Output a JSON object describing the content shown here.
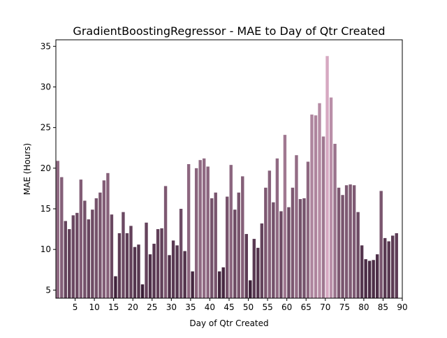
{
  "chart_data": {
    "type": "bar",
    "title": "GradientBoostingRegressor - MAE to Day of Qtr Created",
    "xlabel": "Day of Qtr Created",
    "ylabel": "MAE (Hours)",
    "x_ticks": [
      5,
      10,
      15,
      20,
      25,
      30,
      35,
      40,
      45,
      50,
      55,
      60,
      65,
      70,
      75,
      80,
      85,
      90
    ],
    "y_ticks": [
      5,
      10,
      15,
      20,
      25,
      30,
      35
    ],
    "xlim": [
      0,
      90
    ],
    "ylim": [
      4,
      35.8
    ],
    "grid": false,
    "color_scale": {
      "low": "#3b1e37",
      "high": "#d6a8c1"
    },
    "x": [
      1,
      2,
      3,
      4,
      5,
      6,
      7,
      8,
      9,
      10,
      11,
      12,
      13,
      14,
      15,
      16,
      17,
      18,
      19,
      20,
      21,
      22,
      23,
      24,
      25,
      26,
      27,
      28,
      29,
      30,
      31,
      32,
      33,
      34,
      35,
      36,
      37,
      38,
      39,
      40,
      41,
      42,
      43,
      44,
      45,
      46,
      47,
      48,
      49,
      50,
      51,
      52,
      53,
      54,
      55,
      56,
      57,
      58,
      59,
      60,
      61,
      62,
      63,
      64,
      65,
      66,
      67,
      68,
      69,
      70,
      71,
      72,
      73,
      74,
      75,
      76,
      77,
      78,
      79,
      80,
      81,
      82,
      83,
      84,
      85,
      86,
      87,
      88,
      89
    ],
    "values": [
      20.9,
      18.9,
      13.5,
      12.5,
      14.2,
      14.5,
      18.6,
      16.0,
      13.7,
      14.9,
      16.3,
      17.0,
      18.5,
      19.4,
      14.3,
      6.7,
      12.0,
      14.6,
      12.0,
      12.9,
      10.3,
      10.6,
      5.7,
      13.3,
      9.4,
      10.7,
      12.5,
      12.6,
      17.8,
      9.3,
      11.1,
      10.5,
      15.0,
      9.8,
      20.5,
      7.3,
      20.0,
      21.0,
      21.2,
      20.2,
      16.3,
      17.0,
      7.3,
      7.8,
      16.5,
      20.4,
      14.9,
      17.0,
      19.0,
      11.9,
      6.2,
      11.3,
      10.2,
      13.2,
      17.6,
      19.7,
      15.8,
      21.2,
      14.7,
      24.1,
      15.2,
      17.6,
      21.6,
      16.2,
      16.3,
      20.8,
      26.6,
      26.5,
      28.0,
      23.9,
      33.8,
      28.7,
      23.0,
      17.6,
      16.7,
      17.9,
      18.0,
      17.9,
      14.6,
      10.5,
      8.8,
      8.6,
      8.7,
      9.4,
      17.2,
      11.4,
      11.0,
      11.7,
      12.0
    ]
  }
}
